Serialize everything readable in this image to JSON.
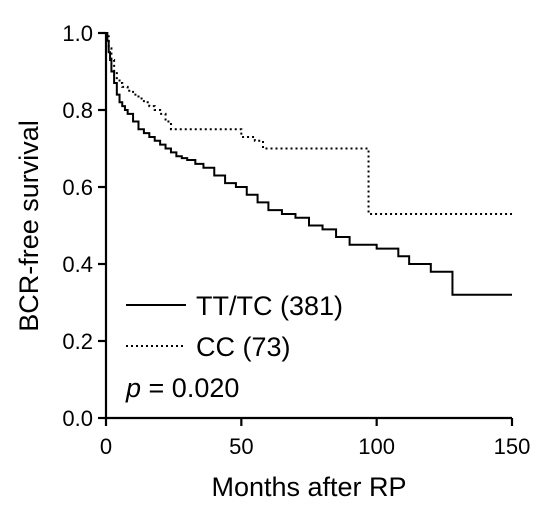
{
  "chart_data": {
    "type": "line",
    "xlabel": "Months after RP",
    "ylabel": "BCR-free survival",
    "xlim": [
      0,
      150
    ],
    "ylim": [
      0,
      1.0
    ],
    "xticks": [
      "0",
      "50",
      "100",
      "150"
    ],
    "yticks": [
      "0.0",
      "0.2",
      "0.4",
      "0.6",
      "0.8",
      "1.0"
    ],
    "legend_position": "bottom-left",
    "annotation": {
      "italic": "p",
      "rest": " = 0.020"
    },
    "series": [
      {
        "name": "TT/TC (381)",
        "style": "solid",
        "x": [
          0,
          0.5,
          1,
          1.5,
          2,
          3,
          4,
          5,
          6,
          7,
          8,
          10,
          12,
          14,
          16,
          18,
          20,
          22,
          24,
          26,
          28,
          30,
          33,
          36,
          40,
          44,
          48,
          52,
          56,
          60,
          65,
          70,
          75,
          80,
          85,
          90,
          97,
          100,
          108,
          112,
          120,
          128,
          132,
          150
        ],
        "y": [
          1.0,
          0.98,
          0.95,
          0.93,
          0.9,
          0.87,
          0.84,
          0.82,
          0.81,
          0.8,
          0.79,
          0.77,
          0.75,
          0.74,
          0.73,
          0.72,
          0.71,
          0.7,
          0.69,
          0.68,
          0.675,
          0.67,
          0.66,
          0.65,
          0.63,
          0.61,
          0.6,
          0.58,
          0.56,
          0.54,
          0.53,
          0.52,
          0.5,
          0.49,
          0.47,
          0.45,
          0.45,
          0.44,
          0.42,
          0.4,
          0.38,
          0.32,
          0.32,
          0.32
        ]
      },
      {
        "name": "CC (73)",
        "style": "dotted",
        "x": [
          0,
          1,
          2,
          3,
          4,
          5,
          6,
          8,
          10,
          12,
          14,
          16,
          18,
          20,
          22,
          24,
          30,
          40,
          50,
          55,
          58,
          70,
          80,
          90,
          95,
          97,
          100,
          150
        ],
        "y": [
          1.0,
          0.96,
          0.93,
          0.9,
          0.88,
          0.87,
          0.86,
          0.85,
          0.84,
          0.83,
          0.82,
          0.81,
          0.8,
          0.79,
          0.77,
          0.75,
          0.75,
          0.75,
          0.73,
          0.72,
          0.7,
          0.7,
          0.7,
          0.7,
          0.7,
          0.53,
          0.53,
          0.53
        ]
      }
    ]
  }
}
